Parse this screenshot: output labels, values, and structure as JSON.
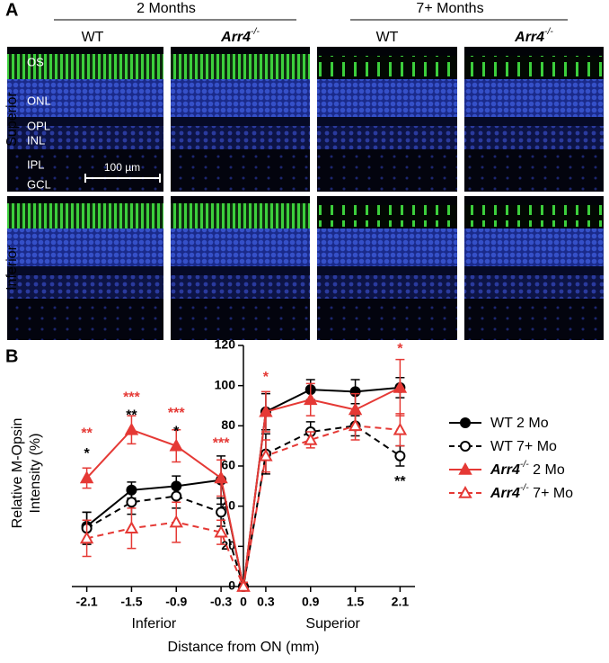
{
  "panel_a": {
    "label": "A",
    "groups": [
      "2 Months",
      "7+ Months"
    ],
    "columns": [
      "WT",
      "Arr4-/-",
      "WT",
      "Arr4-/-"
    ],
    "rows": [
      "Superior",
      "Inferior"
    ],
    "layers": [
      "OS",
      "ONL",
      "OPL",
      "INL",
      "IPL",
      "GCL"
    ],
    "scale_bar": "100 µm"
  },
  "chart_data": {
    "type": "line",
    "panel_label": "B",
    "ylabel": [
      "Relative M-Opsin",
      "Intensity (%)"
    ],
    "xlabel": "Distance from ON (mm)",
    "xgroups": [
      {
        "label": "Inferior",
        "x": -1.2
      },
      {
        "label": "Superior",
        "x": 1.2
      }
    ],
    "x": [
      -2.1,
      -1.5,
      -0.9,
      -0.3,
      0,
      0.3,
      0.9,
      1.5,
      2.1
    ],
    "xlim": [
      -2.3,
      2.3
    ],
    "xticks": [
      -2.1,
      -1.5,
      -0.9,
      -0.3,
      0,
      0.3,
      0.9,
      1.5,
      2.1
    ],
    "ylim": [
      0,
      120
    ],
    "yticks": [
      0,
      20,
      40,
      60,
      80,
      100,
      120
    ],
    "yaxis_at": 0,
    "legend": "right",
    "series": [
      {
        "name": "WT 2 Mo",
        "color": "#000000",
        "linestyle": "solid",
        "marker": "circle",
        "filled": true,
        "values": [
          30,
          48,
          50,
          53,
          0,
          87,
          98,
          97,
          99
        ],
        "errors": [
          7,
          4,
          5,
          12,
          2,
          9,
          5,
          6,
          5
        ]
      },
      {
        "name": "WT 7+ Mo",
        "color": "#000000",
        "linestyle": "dashed",
        "marker": "circle",
        "filled": false,
        "values": [
          29,
          42,
          45,
          37,
          0,
          66,
          77,
          80,
          65
        ],
        "errors": [
          8,
          6,
          6,
          7,
          2,
          10,
          5,
          5,
          5
        ]
      },
      {
        "name": "Arr4-/- 2 Mo",
        "color": "#e53935",
        "linestyle": "solid",
        "marker": "triangle",
        "filled": true,
        "values": [
          54,
          78,
          70,
          54,
          0,
          87,
          93,
          88,
          99
        ],
        "errors": [
          5,
          7,
          8,
          9,
          2,
          10,
          8,
          8,
          14
        ]
      },
      {
        "name": "Arr4-/- 7+ Mo",
        "color": "#e53935",
        "linestyle": "dashed",
        "marker": "triangle",
        "filled": false,
        "values": [
          24,
          29,
          32,
          27,
          0,
          65,
          73,
          80,
          78
        ],
        "errors": [
          9,
          10,
          10,
          6,
          2,
          8,
          4,
          7,
          8
        ]
      }
    ],
    "annotations": [
      {
        "text": "**",
        "x": -2.1,
        "y": 76,
        "color": "#e53935"
      },
      {
        "text": "*",
        "x": -2.1,
        "y": 66,
        "color": "#000000"
      },
      {
        "text": "***",
        "x": -1.5,
        "y": 94,
        "color": "#e53935"
      },
      {
        "text": "**",
        "x": -1.5,
        "y": 85,
        "color": "#000000"
      },
      {
        "text": "***",
        "x": -0.9,
        "y": 86,
        "color": "#e53935"
      },
      {
        "text": "*",
        "x": -0.9,
        "y": 77,
        "color": "#000000"
      },
      {
        "text": "***",
        "x": -0.3,
        "y": 71,
        "color": "#e53935"
      },
      {
        "text": "*",
        "x": 0.3,
        "y": 104,
        "color": "#e53935"
      },
      {
        "text": "*",
        "x": 2.1,
        "y": 118,
        "color": "#e53935"
      },
      {
        "text": "**",
        "x": 2.1,
        "y": 52,
        "color": "#000000"
      }
    ]
  }
}
